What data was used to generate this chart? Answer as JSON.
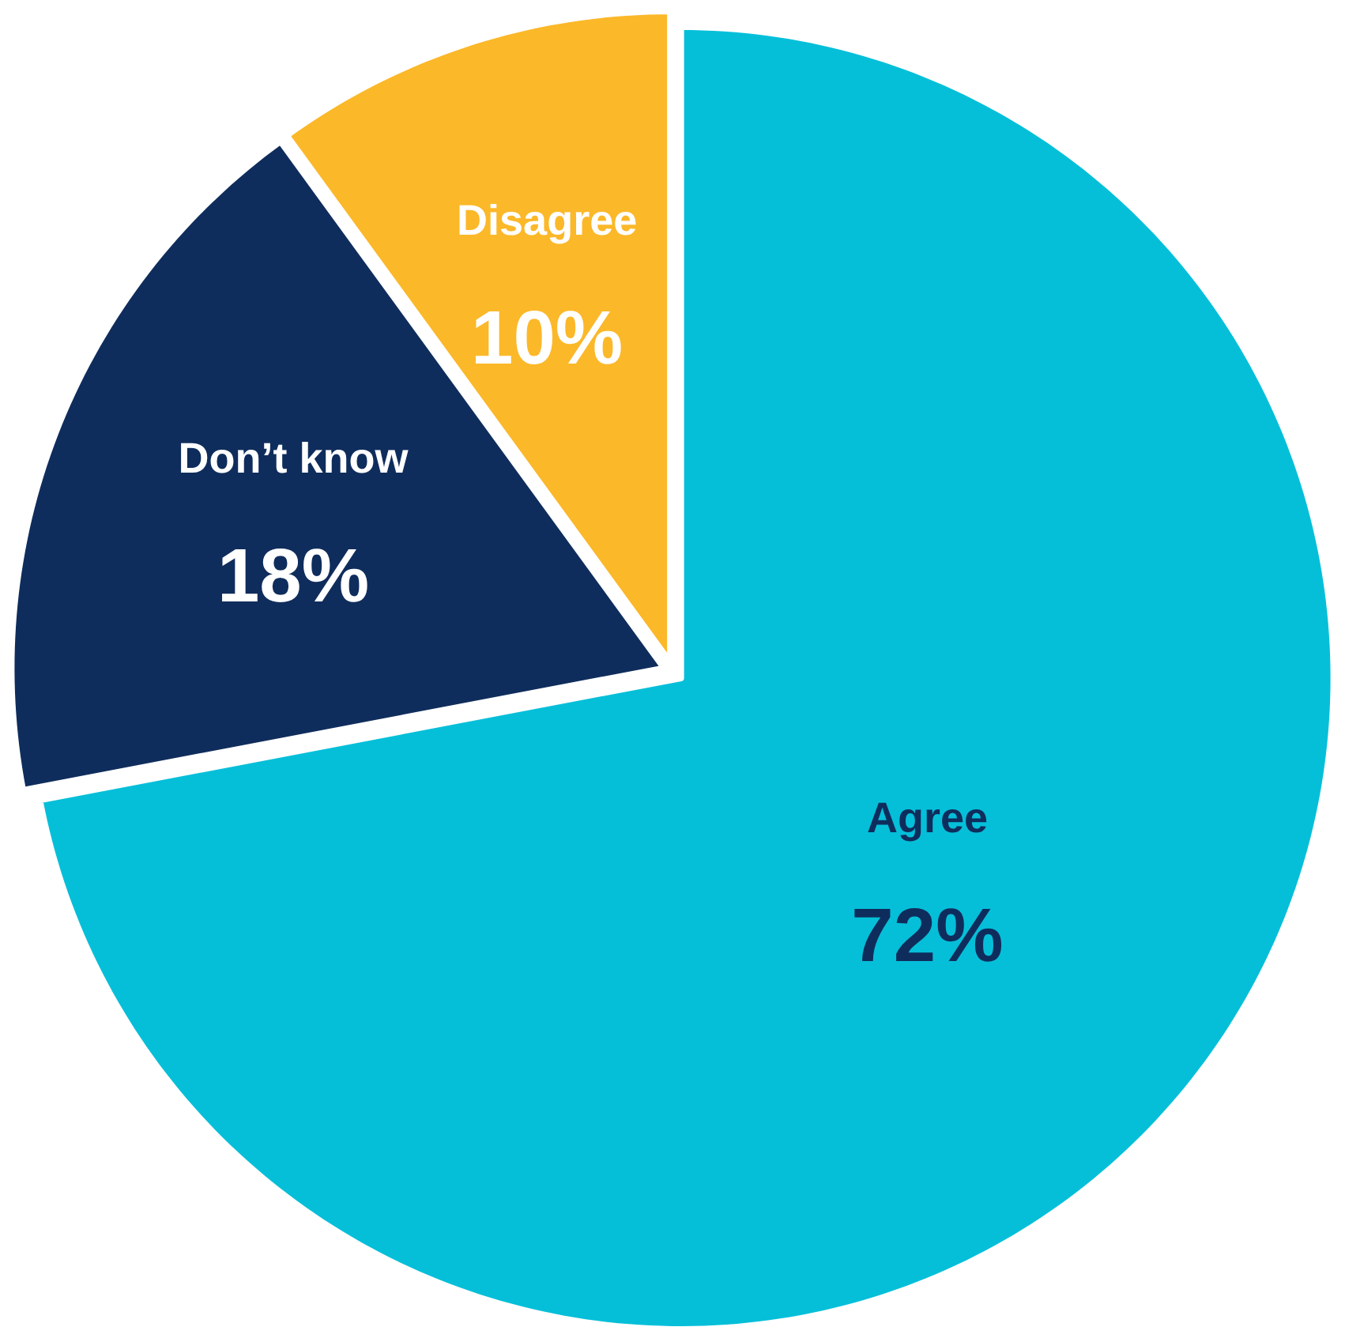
{
  "chart_data": {
    "type": "pie",
    "categories": [
      "Agree",
      "Don’t know",
      "Disagree"
    ],
    "values": [
      72,
      18,
      10
    ],
    "value_labels": [
      "72%",
      "18%",
      "10%"
    ],
    "colors": [
      "#05bfd9",
      "#0f2d5c",
      "#fbb829"
    ]
  }
}
